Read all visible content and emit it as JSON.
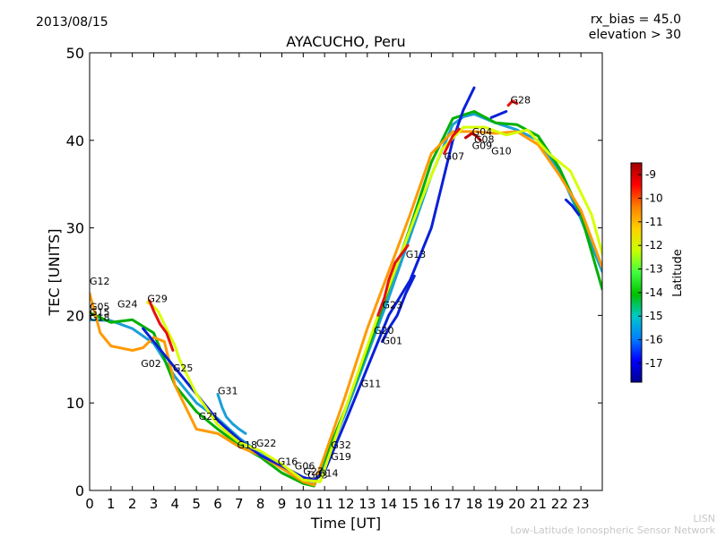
{
  "header": {
    "date": "2013/08/15",
    "rx_bias": "rx_bias = 45.0",
    "elevation": "elevation > 30"
  },
  "footer": {
    "org_short": "LISN",
    "org_long": "Low-Latitude Ionospheric Sensor Network"
  },
  "chart_data": {
    "type": "scatter",
    "title": "AYACUCHO, Peru",
    "xlabel": "Time [UT]",
    "ylabel": "TEC [UNITS]",
    "xlim": [
      0,
      24
    ],
    "ylim": [
      0,
      50
    ],
    "xticks": [
      "0",
      "1",
      "2",
      "3",
      "4",
      "5",
      "6",
      "7",
      "8",
      "9",
      "10",
      "11",
      "12",
      "13",
      "14",
      "15",
      "16",
      "17",
      "18",
      "19",
      "20",
      "21",
      "22",
      "23"
    ],
    "yticks": [
      "0",
      "10",
      "20",
      "30",
      "40",
      "50"
    ],
    "colorbar": {
      "label": "Latitude",
      "range": [
        -17.8,
        -8.5
      ],
      "ticks": [
        "-9",
        "-10",
        "-11",
        "-12",
        "-13",
        "-14",
        "-15",
        "-16",
        "-17"
      ],
      "colors": [
        "#00008f",
        "#0000ff",
        "#0080ff",
        "#00c8c8",
        "#00c000",
        "#40ff40",
        "#c8ff00",
        "#ffd000",
        "#ff8000",
        "#ff0000",
        "#a00000"
      ]
    },
    "satellite_labels": [
      {
        "name": "G12",
        "x": 0.0,
        "y": 23.5
      },
      {
        "name": "G05",
        "x": 0.0,
        "y": 20.6
      },
      {
        "name": "G15",
        "x": 0.0,
        "y": 20.0
      },
      {
        "name": "G18",
        "x": 0.0,
        "y": 19.4
      },
      {
        "name": "G24",
        "x": 1.3,
        "y": 20.9
      },
      {
        "name": "G29",
        "x": 2.7,
        "y": 21.5
      },
      {
        "name": "G02",
        "x": 2.4,
        "y": 14.1
      },
      {
        "name": "G25",
        "x": 3.9,
        "y": 13.6
      },
      {
        "name": "G31",
        "x": 6.0,
        "y": 11.0
      },
      {
        "name": "G21",
        "x": 5.1,
        "y": 8.1
      },
      {
        "name": "G18",
        "x": 6.9,
        "y": 4.8
      },
      {
        "name": "G22",
        "x": 7.8,
        "y": 5.0
      },
      {
        "name": "G16",
        "x": 8.8,
        "y": 2.9
      },
      {
        "name": "G06",
        "x": 9.6,
        "y": 2.4
      },
      {
        "name": "G27",
        "x": 10.0,
        "y": 1.8
      },
      {
        "name": "G14",
        "x": 10.7,
        "y": 1.6
      },
      {
        "name": "G03",
        "x": 10.2,
        "y": 1.4
      },
      {
        "name": "G32",
        "x": 11.3,
        "y": 4.8
      },
      {
        "name": "G19",
        "x": 11.3,
        "y": 3.5
      },
      {
        "name": "G11",
        "x": 12.7,
        "y": 11.8
      },
      {
        "name": "G20",
        "x": 13.3,
        "y": 17.9
      },
      {
        "name": "G01",
        "x": 13.7,
        "y": 16.7
      },
      {
        "name": "G23",
        "x": 13.7,
        "y": 20.8
      },
      {
        "name": "G13",
        "x": 14.8,
        "y": 26.6
      },
      {
        "name": "G07",
        "x": 16.6,
        "y": 37.8
      },
      {
        "name": "G04",
        "x": 17.9,
        "y": 40.6
      },
      {
        "name": "G08",
        "x": 18.0,
        "y": 39.7
      },
      {
        "name": "G09",
        "x": 17.9,
        "y": 39.0
      },
      {
        "name": "G10",
        "x": 18.8,
        "y": 38.4
      },
      {
        "name": "G28",
        "x": 19.7,
        "y": 44.2
      }
    ],
    "series": [
      {
        "name": "track-1",
        "color": "#1a9fd8",
        "x": [
          0,
          1,
          2,
          3,
          4,
          5,
          6,
          7,
          8,
          9,
          10,
          10.5,
          11,
          12,
          13,
          14,
          15,
          16,
          17,
          17.5,
          18,
          19,
          20,
          21,
          22,
          23,
          24
        ],
        "y": [
          19.5,
          19.4,
          18.5,
          16.8,
          13.0,
          10.0,
          8.2,
          6.0,
          4.2,
          2.5,
          1.0,
          0.7,
          3.0,
          9.0,
          15.5,
          22.0,
          29.0,
          36.0,
          41.8,
          42.7,
          43.0,
          42.0,
          41.2,
          40.0,
          36.5,
          31.0,
          25.0
        ]
      },
      {
        "name": "track-2",
        "color": "#00b000",
        "x": [
          0,
          1,
          2,
          3,
          4,
          5,
          6,
          7,
          8,
          9,
          10,
          10.5,
          11,
          12,
          13,
          14,
          15,
          16,
          17,
          18,
          19,
          20,
          21,
          22,
          23,
          24
        ],
        "y": [
          20.3,
          19.2,
          19.5,
          18.0,
          12.0,
          9.0,
          7.0,
          5.2,
          3.8,
          2.0,
          0.8,
          0.5,
          3.5,
          9.5,
          16.0,
          23.0,
          30.0,
          37.5,
          42.5,
          43.3,
          42.0,
          41.8,
          40.5,
          36.8,
          31.5,
          23.0
        ]
      },
      {
        "name": "track-3",
        "color": "#ff9a00",
        "x": [
          0,
          0.5,
          1,
          2,
          2.5,
          3,
          3.5,
          4,
          5,
          6,
          7,
          8,
          9,
          10,
          10.5,
          11,
          12,
          13,
          14,
          15,
          16,
          17,
          18,
          19,
          20,
          21,
          22,
          23,
          24
        ],
        "y": [
          22.5,
          18.0,
          16.5,
          16.0,
          16.3,
          17.5,
          17.0,
          12.0,
          7.0,
          6.5,
          5.0,
          4.0,
          2.5,
          1.0,
          0.6,
          4.0,
          11.0,
          18.5,
          25.0,
          31.5,
          38.5,
          41.0,
          41.0,
          40.8,
          41.0,
          39.5,
          36.0,
          32.0,
          25.5
        ]
      },
      {
        "name": "track-4",
        "color": "#0a20d8",
        "x": [
          2.5,
          3,
          4,
          5,
          6,
          7,
          8,
          9,
          10,
          10.5,
          11,
          12,
          13,
          14,
          15,
          16,
          16.5,
          17,
          17.5,
          18
        ],
        "y": [
          18.5,
          17.0,
          14.0,
          11.0,
          8.0,
          5.8,
          4.0,
          2.8,
          1.5,
          1.2,
          2.2,
          8.0,
          14.0,
          20.0,
          24.0,
          30.0,
          35.0,
          40.0,
          43.5,
          46.0
        ]
      },
      {
        "name": "track-5",
        "color": "#d8ff00",
        "x": [
          2.7,
          3.0,
          3.2,
          3.4,
          3.6,
          3.8,
          4.0,
          4.2,
          5,
          6,
          7,
          8,
          9,
          10,
          10.8,
          11.5,
          12.5,
          13.5,
          14.5,
          15.5,
          16.5,
          17.5,
          18.5,
          19.5,
          20.5,
          21.5,
          22.5,
          23.5,
          24
        ],
        "y": [
          21.5,
          21.0,
          20.5,
          19.5,
          18.5,
          17.5,
          16.5,
          15.0,
          11.0,
          7.5,
          5.5,
          4.5,
          3.0,
          1.2,
          1.0,
          6.0,
          13.0,
          20.0,
          26.5,
          33.0,
          39.0,
          41.5,
          41.5,
          40.6,
          41.2,
          38.5,
          36.5,
          31.5,
          27.0
        ]
      },
      {
        "name": "track-6",
        "color": "#e81010",
        "x": [
          13.5,
          13.8,
          14.0,
          14.3,
          14.6,
          14.9
        ],
        "y": [
          20.0,
          22.0,
          24.0,
          26.0,
          27.0,
          28.0
        ]
      },
      {
        "name": "track-7",
        "color": "#e81010",
        "x": [
          2.8,
          3.0,
          3.3,
          3.6,
          3.9
        ],
        "y": [
          21.7,
          20.5,
          19.0,
          18.0,
          16.0
        ]
      },
      {
        "name": "track-8",
        "color": "#e81010",
        "x": [
          19.6,
          19.8,
          20.0
        ],
        "y": [
          44.0,
          44.5,
          44.2
        ]
      },
      {
        "name": "track-9",
        "color": "#c00000",
        "x": [
          17.6,
          17.9,
          18.1,
          18.3
        ],
        "y": [
          40.3,
          40.8,
          40.5,
          40.0
        ]
      },
      {
        "name": "track-10",
        "color": "#0a20d8",
        "x": [
          18.8,
          19.2,
          19.5
        ],
        "y": [
          42.6,
          43.0,
          43.3
        ]
      },
      {
        "name": "track-11",
        "color": "#0a20d8",
        "x": [
          22.3,
          22.6,
          22.9
        ],
        "y": [
          33.2,
          32.5,
          31.5
        ]
      },
      {
        "name": "track-12",
        "color": "#1a9fd8",
        "x": [
          6.0,
          6.2,
          6.4,
          6.7,
          7.0,
          7.3
        ],
        "y": [
          11.0,
          9.5,
          8.4,
          7.6,
          7.0,
          6.5
        ]
      },
      {
        "name": "track-13",
        "color": "#0a20d8",
        "x": [
          13.7,
          14.0,
          14.4,
          14.8,
          15.2
        ],
        "y": [
          17.0,
          18.5,
          20.0,
          22.5,
          24.5
        ]
      },
      {
        "name": "track-14",
        "color": "#e81010",
        "x": [
          16.6,
          17.0,
          17.3
        ],
        "y": [
          38.5,
          40.5,
          41.3
        ]
      }
    ]
  }
}
